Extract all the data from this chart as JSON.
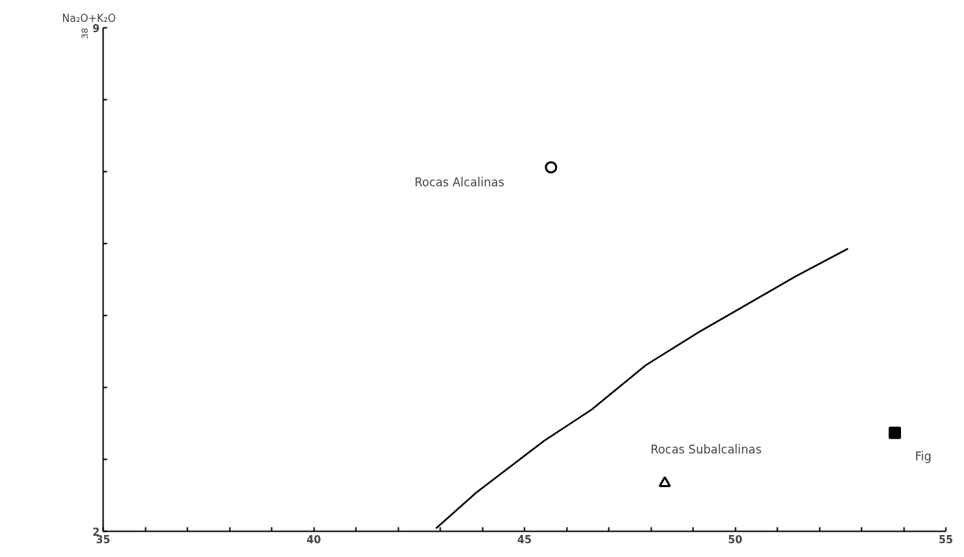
{
  "chart_data": {
    "type": "scatter",
    "ylabel": "Na₂O+K₂O",
    "xlim": [
      35,
      55
    ],
    "ylim": [
      2,
      9
    ],
    "xticks": [
      35,
      {
        "value": 36,
        "label": null
      },
      {
        "value": 37,
        "label": null
      },
      {
        "value": 38,
        "label": null
      },
      {
        "value": 39,
        "label": null
      },
      40,
      {
        "value": 41,
        "label": null
      },
      {
        "value": 42,
        "label": null
      },
      {
        "value": 43,
        "label": null
      },
      {
        "value": 44,
        "label": null
      },
      45,
      {
        "value": 46,
        "label": null
      },
      {
        "value": 47,
        "label": null
      },
      {
        "value": 48,
        "label": null
      },
      {
        "value": 49,
        "label": null
      },
      50,
      {
        "value": 51,
        "label": null
      },
      {
        "value": 52,
        "label": null
      },
      {
        "value": 53,
        "label": null
      },
      {
        "value": 54,
        "label": null
      },
      55
    ],
    "yticks": [
      2,
      {
        "value": 3,
        "label": null
      },
      {
        "value": 4,
        "label": null
      },
      {
        "value": 5,
        "label": null
      },
      {
        "value": 6,
        "label": null
      },
      {
        "value": 7,
        "label": null
      },
      {
        "value": 8,
        "label": null
      },
      9
    ],
    "grid": false,
    "series": [
      {
        "type": "line",
        "color": "#000000",
        "line_style": "solid",
        "x": [
          42.9,
          43.86,
          44.82,
          45.47,
          46.59,
          47.88,
          49.17,
          50.3,
          51.42,
          52.68
        ],
        "values": [
          2.04,
          2.54,
          2.97,
          3.26,
          3.69,
          4.31,
          4.78,
          5.16,
          5.54,
          5.93
        ]
      },
      {
        "color": "#000000",
        "marker": "circle",
        "x": [
          45.63
        ],
        "values": [
          7.06
        ]
      },
      {
        "color": "#000000",
        "marker": "triangle",
        "x": [
          48.33
        ],
        "values": [
          2.67
        ]
      },
      {
        "color": "#000000",
        "marker": "square",
        "x": [
          53.79
        ],
        "values": [
          3.37
        ]
      }
    ],
    "annotations": [
      "Rocas Alcalinas",
      "Rocas Subalcalinas",
      "38",
      "Fig"
    ]
  }
}
